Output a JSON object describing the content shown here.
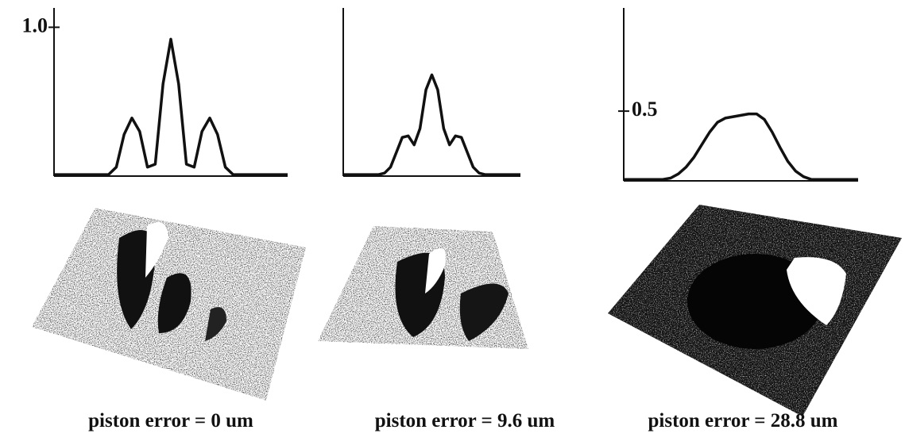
{
  "chart_data": [
    {
      "type": "line",
      "caption": "piston error = 0 um",
      "x": [
        -1.5,
        -1.4,
        -1.3,
        -1.2,
        -1.1,
        -1.0,
        -0.9,
        -0.8,
        -0.7,
        -0.6,
        -0.5,
        -0.4,
        -0.3,
        -0.2,
        -0.1,
        0,
        0.1,
        0.2,
        0.3,
        0.4,
        0.5,
        0.6,
        0.7,
        0.8,
        0.9,
        1.0,
        1.1,
        1.2,
        1.3,
        1.4,
        1.5
      ],
      "series": [
        {
          "color": "#111111",
          "values": [
            0.01,
            0.01,
            0.01,
            0.01,
            0.01,
            0.01,
            0.01,
            0.01,
            0.06,
            0.28,
            0.39,
            0.3,
            0.06,
            0.08,
            0.62,
            0.92,
            0.62,
            0.08,
            0.06,
            0.3,
            0.39,
            0.28,
            0.06,
            0.01,
            0.01,
            0.01,
            0.01,
            0.01,
            0.01,
            0.01,
            0.01
          ]
        }
      ],
      "xlim": [
        -1.5,
        1.5
      ],
      "ylim": [
        0,
        1.13
      ],
      "yticks": [
        {
          "value": 1,
          "label": "1.0"
        }
      ]
    },
    {
      "type": "line",
      "caption": "piston error = 9.6 um",
      "x": [
        -1.5,
        -1.4,
        -1.3,
        -1.2,
        -1.1,
        -1.0,
        -0.9,
        -0.8,
        -0.7,
        -0.6,
        -0.5,
        -0.4,
        -0.3,
        -0.2,
        -0.1,
        0,
        0.1,
        0.2,
        0.3,
        0.4,
        0.5,
        0.6,
        0.7,
        0.8,
        0.9,
        1.0,
        1.1,
        1.2,
        1.3,
        1.4,
        1.5
      ],
      "series": [
        {
          "color": "#111111",
          "values": [
            0.01,
            0.01,
            0.01,
            0.01,
            0.01,
            0.01,
            0.01,
            0.02,
            0.06,
            0.16,
            0.26,
            0.27,
            0.21,
            0.32,
            0.58,
            0.68,
            0.58,
            0.32,
            0.21,
            0.27,
            0.26,
            0.16,
            0.06,
            0.02,
            0.01,
            0.01,
            0.01,
            0.01,
            0.01,
            0.01,
            0.01
          ]
        }
      ],
      "xlim": [
        -1.5,
        1.5
      ],
      "ylim": [
        0,
        1.13
      ],
      "yticks": []
    },
    {
      "type": "line",
      "caption": "piston error = 28.8 um",
      "x": [
        -1.5,
        -1.4,
        -1.3,
        -1.2,
        -1.1,
        -1.0,
        -0.9,
        -0.8,
        -0.7,
        -0.6,
        -0.5,
        -0.4,
        -0.3,
        -0.2,
        -0.1,
        0,
        0.1,
        0.2,
        0.3,
        0.4,
        0.5,
        0.6,
        0.7,
        0.8,
        0.9,
        1.0,
        1.1,
        1.2,
        1.3,
        1.4,
        1.5
      ],
      "series": [
        {
          "color": "#111111",
          "values": [
            0.01,
            0.01,
            0.01,
            0.01,
            0.01,
            0.01,
            0.02,
            0.05,
            0.1,
            0.17,
            0.26,
            0.35,
            0.42,
            0.45,
            0.46,
            0.47,
            0.48,
            0.48,
            0.44,
            0.35,
            0.24,
            0.14,
            0.07,
            0.03,
            0.01,
            0.01,
            0.01,
            0.01,
            0.01,
            0.01,
            0.01
          ]
        }
      ],
      "xlim": [
        -1.5,
        1.5
      ],
      "ylim": [
        0,
        1.24
      ],
      "yticks": [
        0.5
      ]
    }
  ]
}
